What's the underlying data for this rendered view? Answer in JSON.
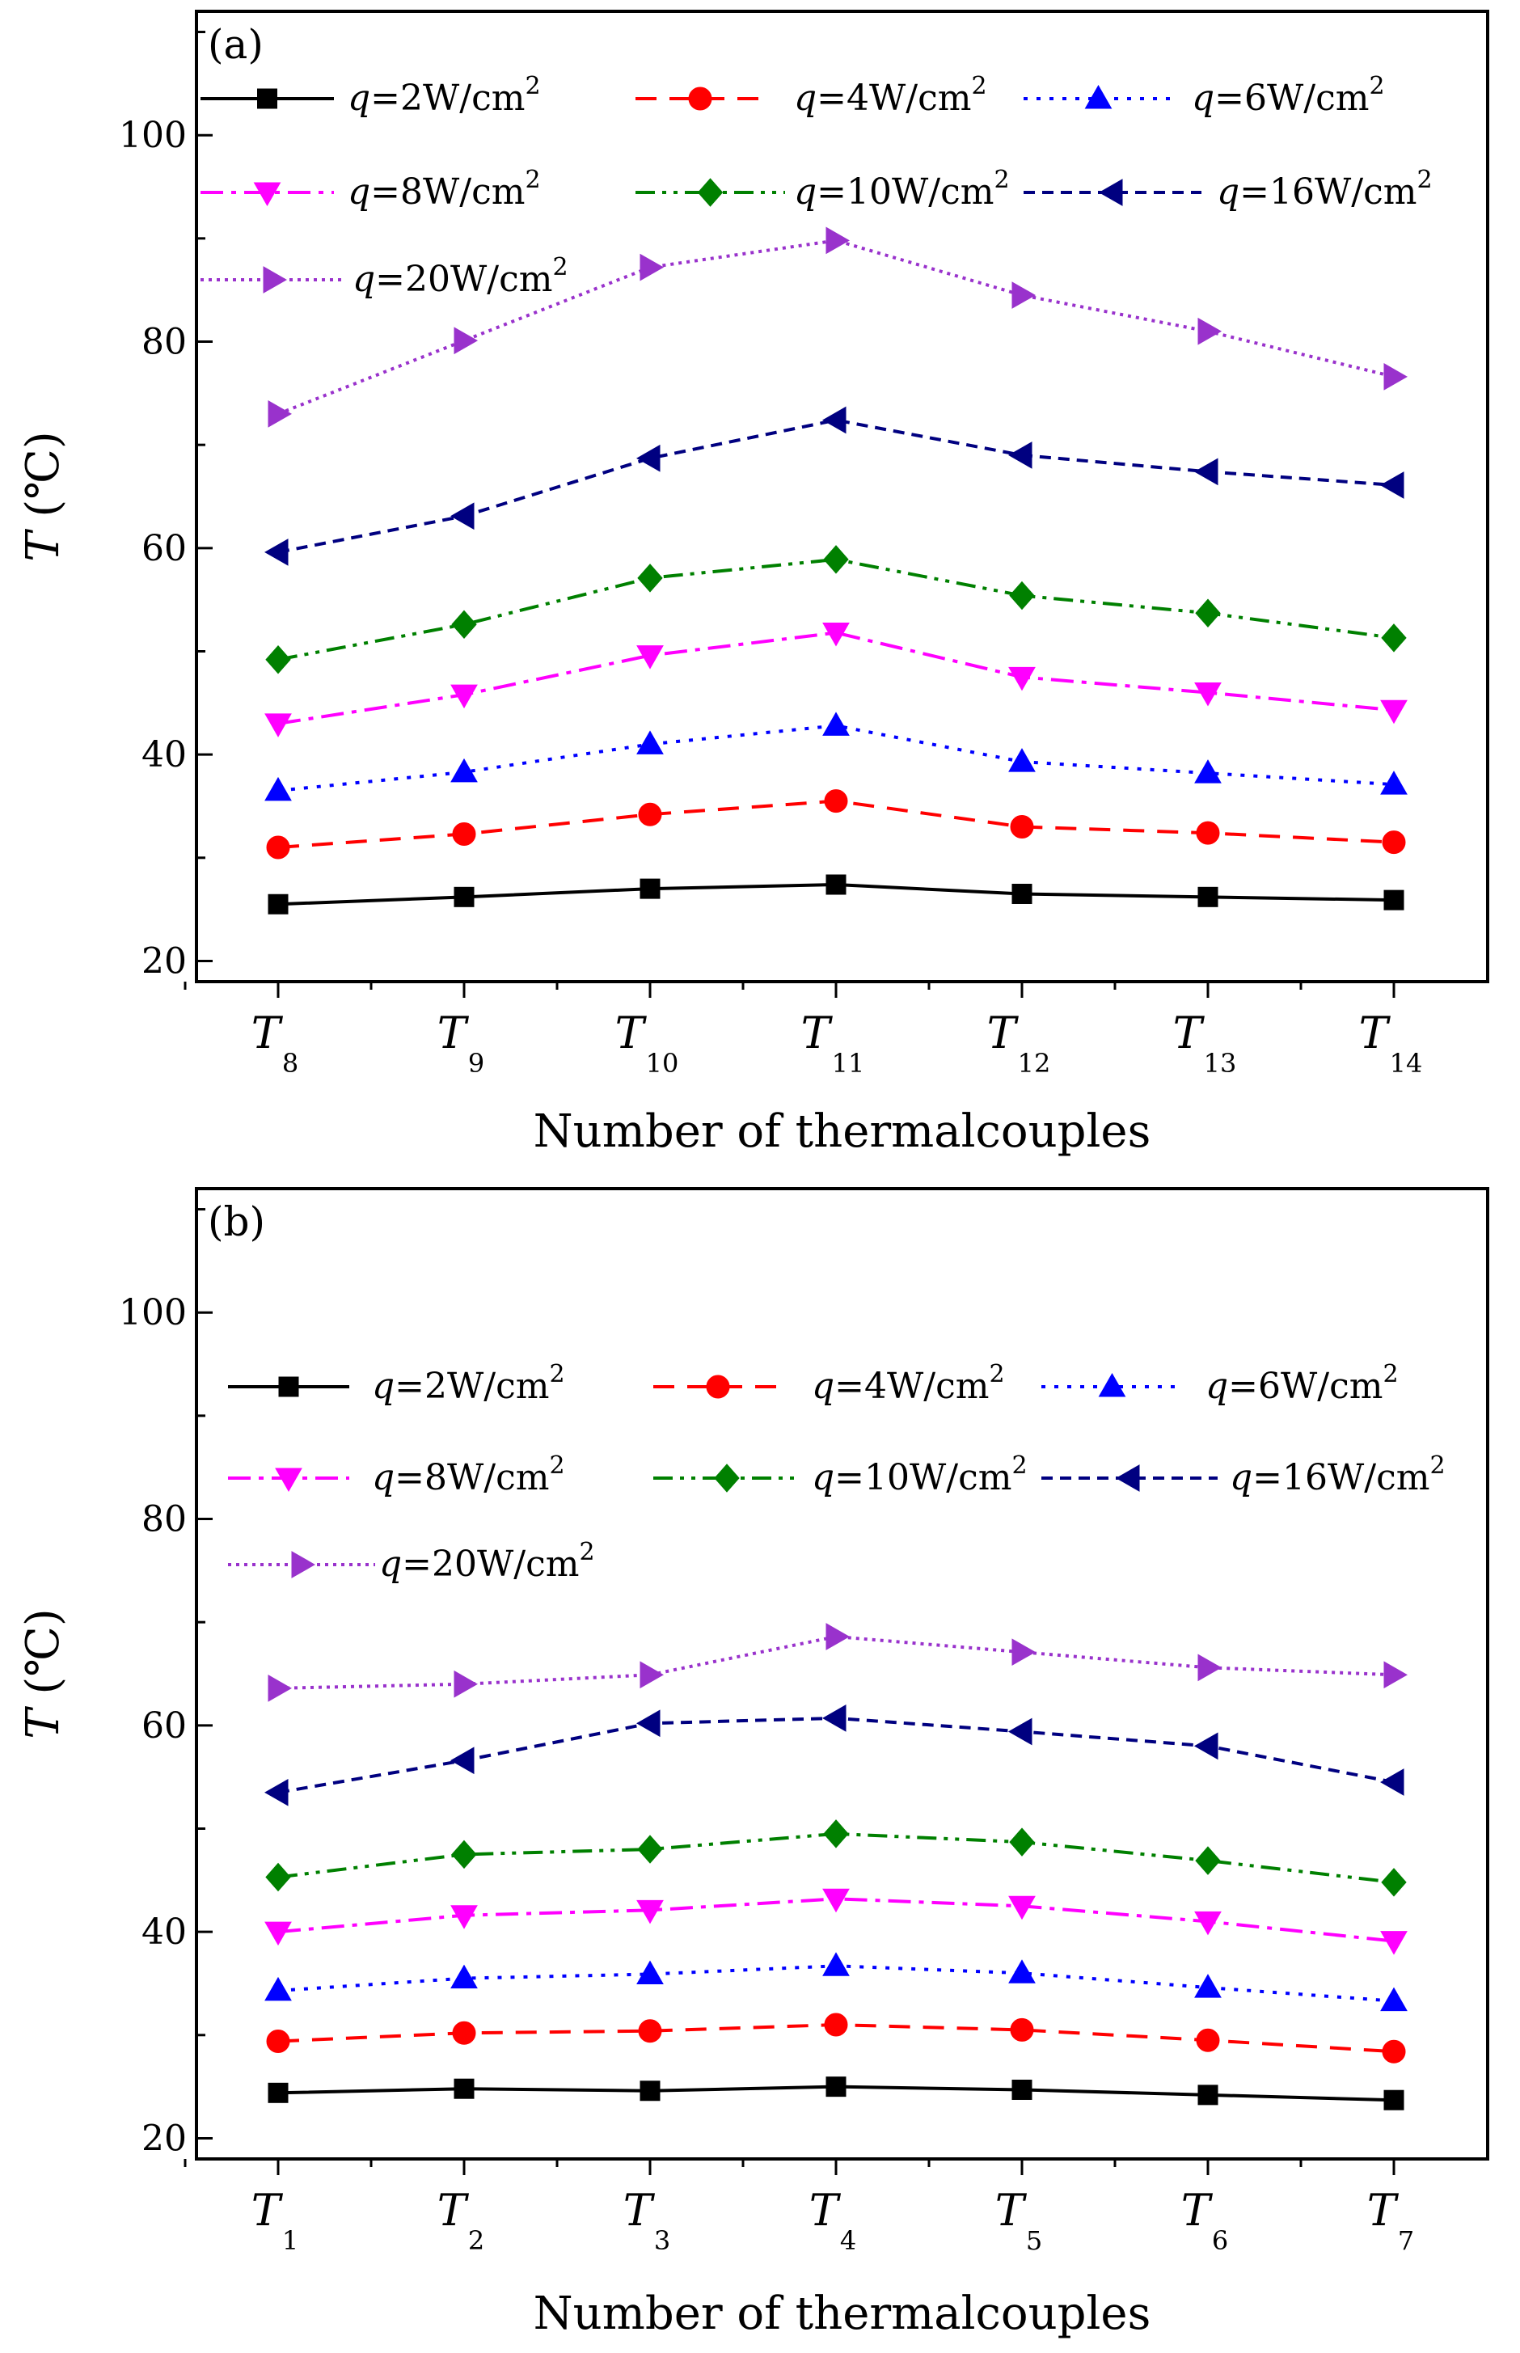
{
  "chart_data": [
    {
      "type": "line",
      "panel_label": "(a)",
      "xlabel": "Number of thermalcouples",
      "ylabel_var": "T",
      "ylabel_unit": " (℃)",
      "ylim": [
        18,
        112
      ],
      "yticks": [
        20,
        40,
        60,
        80,
        100
      ],
      "categories": [
        {
          "main": "T",
          "sub": "8"
        },
        {
          "main": "T",
          "sub": "9"
        },
        {
          "main": "T",
          "sub": "10"
        },
        {
          "main": "T",
          "sub": "11"
        },
        {
          "main": "T",
          "sub": "12"
        },
        {
          "main": "T",
          "sub": "13"
        },
        {
          "main": "T",
          "sub": "14"
        }
      ],
      "series": [
        {
          "var": "q",
          "label": "=2W/cm",
          "sup": "2",
          "color": "#000000",
          "marker": "square",
          "dash": "solid",
          "values": [
            25.5,
            26.2,
            27.0,
            27.4,
            26.5,
            26.2,
            25.9
          ]
        },
        {
          "var": "q",
          "label": "=4W/cm",
          "sup": "2",
          "color": "#ff0000",
          "marker": "circle",
          "dash": "dash",
          "values": [
            31.0,
            32.3,
            34.2,
            35.5,
            33.0,
            32.4,
            31.5
          ]
        },
        {
          "var": "q",
          "label": "=6W/cm",
          "sup": "2",
          "color": "#0000ff",
          "marker": "triangle-up",
          "dash": "dot",
          "values": [
            36.5,
            38.3,
            41.0,
            42.8,
            39.3,
            38.2,
            37.1
          ]
        },
        {
          "var": "q",
          "label": "=8W/cm",
          "sup": "2",
          "color": "#ff00ff",
          "marker": "triangle-down",
          "dash": "dashdot",
          "values": [
            43.0,
            45.8,
            49.6,
            51.8,
            47.5,
            46.0,
            44.3
          ]
        },
        {
          "var": "q",
          "label": "=10W/cm",
          "sup": "2",
          "color": "#008000",
          "marker": "diamond",
          "dash": "dashdotdot",
          "values": [
            49.2,
            52.6,
            57.1,
            58.9,
            55.4,
            53.7,
            51.3
          ]
        },
        {
          "var": "q",
          "label": "=16W/cm",
          "sup": "2",
          "color": "#000080",
          "marker": "triangle-left",
          "dash": "shortdash",
          "values": [
            59.6,
            63.1,
            68.7,
            72.4,
            69.0,
            67.4,
            66.1
          ]
        },
        {
          "var": "q",
          "label": "=20W/cm",
          "sup": "2",
          "color": "#9932cc",
          "marker": "triangle-right",
          "dash": "shortdot",
          "values": [
            73.0,
            80.1,
            87.2,
            89.8,
            84.5,
            81.0,
            76.6
          ]
        }
      ]
    },
    {
      "type": "line",
      "panel_label": "(b)",
      "xlabel": "Number of thermalcouples",
      "ylabel_var": "T",
      "ylabel_unit": " (℃)",
      "ylim": [
        18,
        112
      ],
      "yticks": [
        20,
        40,
        60,
        80,
        100
      ],
      "categories": [
        {
          "main": "T",
          "sub": "1"
        },
        {
          "main": "T",
          "sub": "2"
        },
        {
          "main": "T",
          "sub": "3"
        },
        {
          "main": "T",
          "sub": "4"
        },
        {
          "main": "T",
          "sub": "5"
        },
        {
          "main": "T",
          "sub": "6"
        },
        {
          "main": "T",
          "sub": "7"
        }
      ],
      "series": [
        {
          "var": "q",
          "label": "=2W/cm",
          "sup": "2",
          "color": "#000000",
          "marker": "square",
          "dash": "solid",
          "values": [
            24.4,
            24.8,
            24.6,
            25.0,
            24.7,
            24.2,
            23.7
          ]
        },
        {
          "var": "q",
          "label": "=4W/cm",
          "sup": "2",
          "color": "#ff0000",
          "marker": "circle",
          "dash": "dash",
          "values": [
            29.4,
            30.2,
            30.4,
            31.0,
            30.5,
            29.5,
            28.4
          ]
        },
        {
          "var": "q",
          "label": "=6W/cm",
          "sup": "2",
          "color": "#0000ff",
          "marker": "triangle-up",
          "dash": "dot",
          "values": [
            34.3,
            35.5,
            35.9,
            36.7,
            36.0,
            34.6,
            33.3
          ]
        },
        {
          "var": "q",
          "label": "=8W/cm",
          "sup": "2",
          "color": "#ff00ff",
          "marker": "triangle-down",
          "dash": "dashdot",
          "values": [
            40.0,
            41.6,
            42.1,
            43.2,
            42.5,
            41.0,
            39.1
          ]
        },
        {
          "var": "q",
          "label": "=10W/cm",
          "sup": "2",
          "color": "#008000",
          "marker": "diamond",
          "dash": "dashdotdot",
          "values": [
            45.3,
            47.5,
            48.0,
            49.5,
            48.7,
            46.9,
            44.8
          ]
        },
        {
          "var": "q",
          "label": "=16W/cm",
          "sup": "2",
          "color": "#000080",
          "marker": "triangle-left",
          "dash": "shortdash",
          "values": [
            53.5,
            56.6,
            60.2,
            60.7,
            59.4,
            58.0,
            54.5
          ]
        },
        {
          "var": "q",
          "label": "=20W/cm",
          "sup": "2",
          "color": "#9932cc",
          "marker": "triangle-right",
          "dash": "shortdot",
          "values": [
            63.6,
            64.0,
            64.9,
            68.6,
            67.1,
            65.6,
            64.9
          ]
        }
      ]
    }
  ]
}
